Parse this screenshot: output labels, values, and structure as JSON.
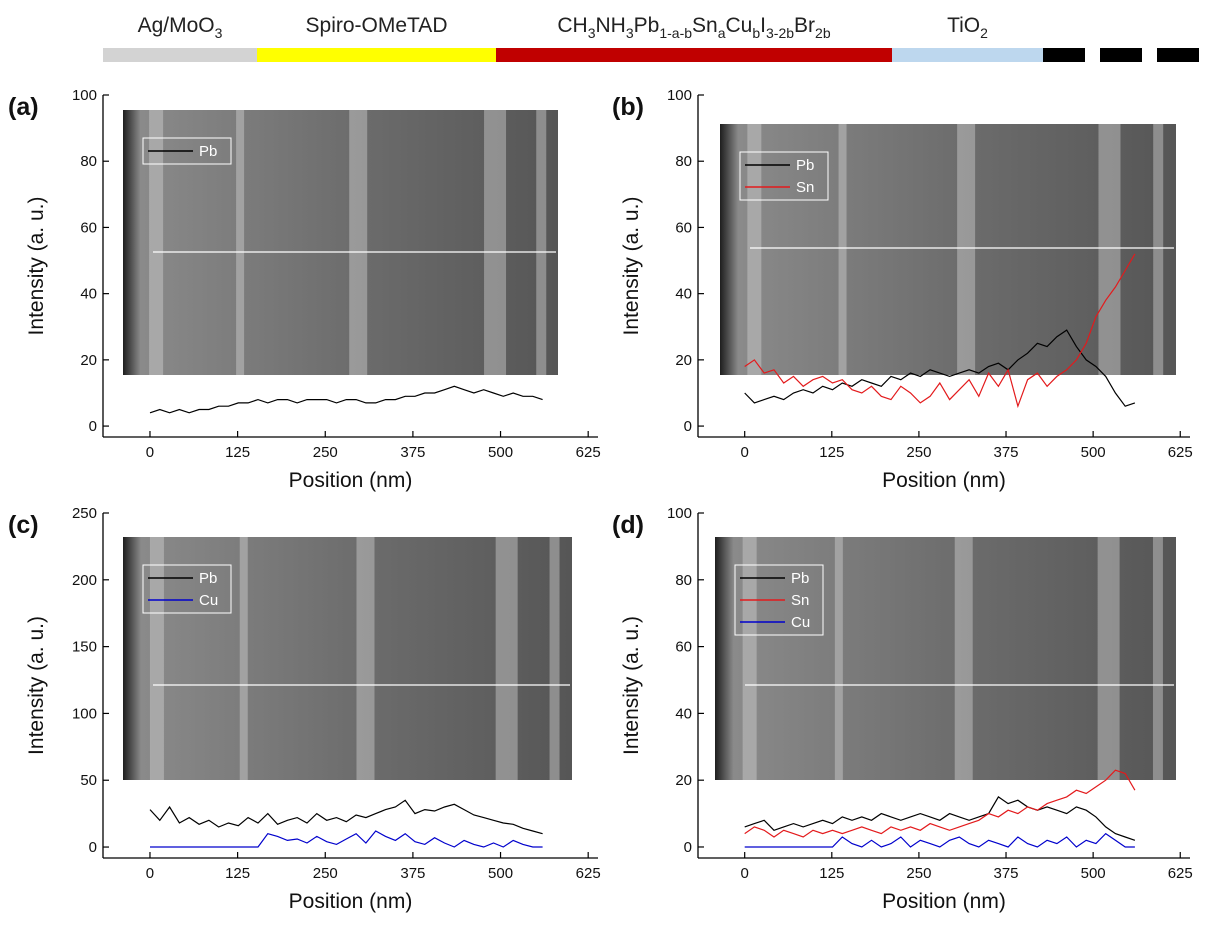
{
  "layers": [
    {
      "label": [
        "Ag/MoO",
        "3"
      ],
      "color": "#d3d3d3"
    },
    {
      "label": [
        "Spiro-OMeTAD"
      ],
      "color": "#ffff00"
    },
    {
      "label": [
        "CH",
        "3",
        "NH",
        "3",
        "Pb",
        "1-a-b",
        "Sn",
        "a",
        "Cu",
        "b",
        "I",
        "3-2b",
        "Br",
        "2b"
      ],
      "color": "#c00000"
    },
    {
      "label": [
        "TiO",
        "2"
      ],
      "color": "#bdd7ee"
    }
  ],
  "chart_data": [
    {
      "type": "line",
      "panel_label": "(a)",
      "x_label": "Position (nm)",
      "y_label": "Intensity (a. u.)",
      "xlim": [
        -67,
        639
      ],
      "xticks": [
        0,
        125,
        250,
        375,
        500,
        625
      ],
      "ylim": [
        -3.3,
        100
      ],
      "yticks": [
        0,
        20,
        40,
        60,
        80,
        100
      ],
      "legend": "upper left",
      "x": [
        0,
        14,
        28,
        42,
        56,
        70,
        84,
        98,
        112,
        126,
        140,
        154,
        168,
        182,
        196,
        210,
        224,
        238,
        252,
        266,
        280,
        294,
        308,
        322,
        336,
        350,
        364,
        378,
        392,
        406,
        420,
        434,
        448,
        462,
        476,
        490,
        504,
        518,
        532,
        546,
        560
      ],
      "series": [
        {
          "name": "Pb",
          "color": "#000000",
          "values": [
            4,
            5,
            4,
            5,
            4,
            5,
            5,
            6,
            6,
            7,
            7,
            8,
            7,
            8,
            8,
            7,
            8,
            8,
            8,
            7,
            8,
            8,
            7,
            7,
            8,
            8,
            9,
            9,
            10,
            10,
            11,
            12,
            11,
            10,
            11,
            10,
            9,
            10,
            9,
            9,
            8
          ]
        }
      ]
    },
    {
      "type": "line",
      "panel_label": "(b)",
      "x_label": "Position (nm)",
      "y_label": "Intensity (a. u.)",
      "xlim": [
        -67,
        639
      ],
      "xticks": [
        0,
        125,
        250,
        375,
        500,
        625
      ],
      "ylim": [
        -3.3,
        100
      ],
      "yticks": [
        0,
        20,
        40,
        60,
        80,
        100
      ],
      "legend": "upper left",
      "x": [
        0,
        14,
        28,
        42,
        56,
        70,
        84,
        98,
        112,
        126,
        140,
        154,
        168,
        182,
        196,
        210,
        224,
        238,
        252,
        266,
        280,
        294,
        308,
        322,
        336,
        350,
        364,
        378,
        392,
        406,
        420,
        434,
        448,
        462,
        476,
        490,
        504,
        518,
        532,
        546,
        560
      ],
      "series": [
        {
          "name": "Pb",
          "color": "#000000",
          "values": [
            10,
            7,
            8,
            9,
            8,
            10,
            11,
            10,
            12,
            11,
            13,
            12,
            14,
            13,
            12,
            15,
            14,
            16,
            15,
            17,
            16,
            15,
            16,
            17,
            16,
            18,
            19,
            17,
            20,
            22,
            25,
            24,
            27,
            29,
            24,
            20,
            18,
            15,
            10,
            6,
            7
          ]
        },
        {
          "name": "Sn",
          "color": "#e31a1c",
          "values": [
            18,
            20,
            16,
            17,
            13,
            15,
            12,
            14,
            15,
            13,
            14,
            11,
            10,
            12,
            9,
            8,
            12,
            10,
            7,
            9,
            13,
            8,
            11,
            14,
            9,
            16,
            12,
            17,
            6,
            14,
            16,
            12,
            15,
            17,
            20,
            25,
            33,
            38,
            42,
            47,
            52
          ]
        }
      ]
    },
    {
      "type": "line",
      "panel_label": "(c)",
      "x_label": "Position (nm)",
      "y_label": "Intensity (a. u.)",
      "xlim": [
        -67,
        639
      ],
      "xticks": [
        0,
        125,
        250,
        375,
        500,
        625
      ],
      "ylim": [
        -8.2,
        250
      ],
      "yticks": [
        0,
        50,
        100,
        150,
        200,
        250
      ],
      "legend": "upper left",
      "x": [
        0,
        14,
        28,
        42,
        56,
        70,
        84,
        98,
        112,
        126,
        140,
        154,
        168,
        182,
        196,
        210,
        224,
        238,
        252,
        266,
        280,
        294,
        308,
        322,
        336,
        350,
        364,
        378,
        392,
        406,
        420,
        434,
        448,
        462,
        476,
        490,
        504,
        518,
        532,
        546,
        560
      ],
      "series": [
        {
          "name": "Pb",
          "color": "#000000",
          "values": [
            28,
            20,
            30,
            18,
            22,
            17,
            20,
            15,
            18,
            16,
            22,
            18,
            25,
            17,
            20,
            22,
            18,
            25,
            20,
            22,
            19,
            24,
            22,
            25,
            28,
            30,
            35,
            25,
            28,
            27,
            30,
            32,
            28,
            24,
            22,
            20,
            18,
            17,
            14,
            12,
            10
          ]
        },
        {
          "name": "Cu",
          "color": "#0000cc",
          "values": [
            0,
            0,
            0,
            0,
            0,
            0,
            0,
            0,
            0,
            0,
            0,
            0,
            10,
            8,
            5,
            6,
            3,
            8,
            4,
            2,
            6,
            10,
            3,
            12,
            8,
            5,
            10,
            4,
            2,
            7,
            3,
            0,
            5,
            2,
            0,
            3,
            0,
            5,
            2,
            0,
            0
          ]
        }
      ]
    },
    {
      "type": "line",
      "panel_label": "(d)",
      "x_label": "Position (nm)",
      "y_label": "Intensity (a. u.)",
      "xlim": [
        -67,
        639
      ],
      "xticks": [
        0,
        125,
        250,
        375,
        500,
        625
      ],
      "ylim": [
        -3.3,
        100
      ],
      "yticks": [
        0,
        20,
        40,
        60,
        80,
        100
      ],
      "legend": "upper left",
      "x": [
        0,
        14,
        28,
        42,
        56,
        70,
        84,
        98,
        112,
        126,
        140,
        154,
        168,
        182,
        196,
        210,
        224,
        238,
        252,
        266,
        280,
        294,
        308,
        322,
        336,
        350,
        364,
        378,
        392,
        406,
        420,
        434,
        448,
        462,
        476,
        490,
        504,
        518,
        532,
        546,
        560
      ],
      "series": [
        {
          "name": "Pb",
          "color": "#000000",
          "values": [
            6,
            7,
            8,
            5,
            6,
            7,
            6,
            7,
            8,
            7,
            9,
            8,
            9,
            8,
            10,
            9,
            8,
            9,
            10,
            9,
            8,
            10,
            9,
            8,
            9,
            10,
            15,
            13,
            14,
            12,
            11,
            12,
            11,
            10,
            12,
            11,
            9,
            6,
            4,
            3,
            2
          ]
        },
        {
          "name": "Sn",
          "color": "#e31a1c",
          "values": [
            4,
            6,
            5,
            3,
            5,
            4,
            3,
            5,
            4,
            5,
            4,
            5,
            6,
            5,
            4,
            6,
            5,
            6,
            5,
            7,
            6,
            5,
            6,
            7,
            8,
            10,
            9,
            11,
            10,
            12,
            11,
            13,
            14,
            15,
            17,
            16,
            18,
            20,
            23,
            22,
            17
          ]
        },
        {
          "name": "Cu",
          "color": "#0000cc",
          "values": [
            0,
            0,
            0,
            0,
            0,
            0,
            0,
            0,
            0,
            0,
            3,
            1,
            0,
            2,
            0,
            1,
            3,
            0,
            2,
            1,
            0,
            2,
            3,
            1,
            0,
            2,
            1,
            0,
            3,
            1,
            0,
            2,
            1,
            3,
            0,
            2,
            1,
            4,
            2,
            0,
            0
          ]
        }
      ]
    }
  ]
}
